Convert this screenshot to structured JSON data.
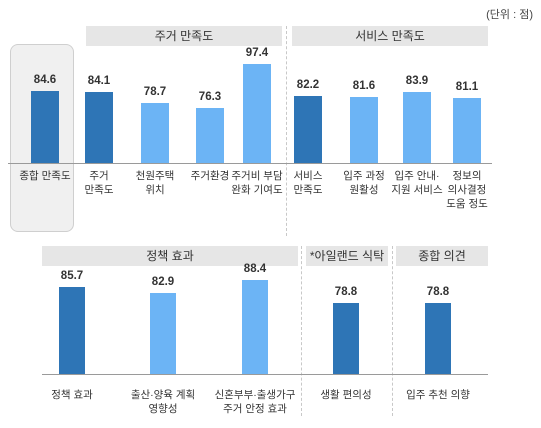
{
  "unit_label": "(단위 : 점)",
  "colors": {
    "dark": "#2e75b6",
    "light": "#6cb4f5",
    "header_bg": "#e6e6e6"
  },
  "chart_data": [
    {
      "type": "bar",
      "group": "top",
      "headers": [
        "주거 만족도",
        "서비스 만족도"
      ],
      "categories": [
        "종합 만족도",
        "주거\n만족도",
        "천원주택\n위치",
        "주거환경",
        "주거비 부담\n완화 기여도",
        "서비스\n만족도",
        "입주 과정\n원활성",
        "입주 안내·\n지원 서비스",
        "정보의\n의사결정\n도움 정도"
      ],
      "values": [
        84.6,
        84.1,
        78.7,
        76.3,
        97.4,
        82.2,
        81.6,
        83.9,
        81.1
      ],
      "value_labels": [
        "84.6",
        "84.1",
        "78.7",
        "76.3",
        "97.4",
        "82.2",
        "81.6",
        "83.9",
        "81.1"
      ],
      "color_keys": [
        "dark",
        "dark",
        "light",
        "light",
        "light",
        "dark",
        "light",
        "light",
        "light"
      ]
    },
    {
      "type": "bar",
      "group": "bottom",
      "headers": [
        "정책 효과",
        "*아일랜드 식탁",
        "종합 의견"
      ],
      "categories": [
        "정책 효과",
        "출산·양육 계획\n영향성",
        "신혼부부·출생가구\n주거 안정 효과",
        "생활 편의성",
        "입주 추천 의향"
      ],
      "values": [
        85.7,
        82.9,
        88.4,
        78.8,
        78.8
      ],
      "value_labels": [
        "85.7",
        "82.9",
        "88.4",
        "78.8",
        "78.8"
      ],
      "color_keys": [
        "dark",
        "light",
        "light",
        "dark",
        "dark"
      ]
    }
  ]
}
